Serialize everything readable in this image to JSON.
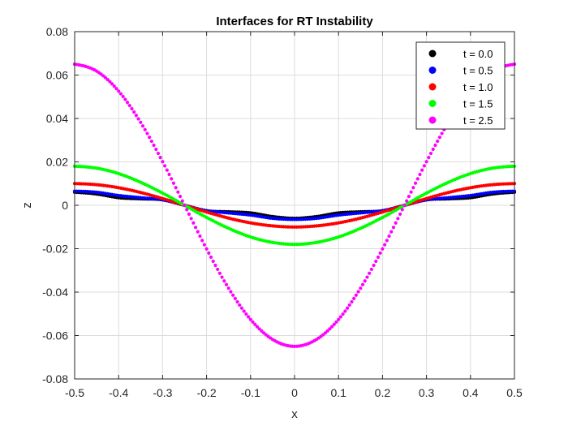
{
  "chart_data": {
    "type": "scatter",
    "title": "Interfaces for RT Instability",
    "xlabel": "x",
    "ylabel": "z",
    "xlim": [
      -0.5,
      0.5
    ],
    "ylim": [
      -0.08,
      0.08
    ],
    "xticks": [
      -0.5,
      -0.4,
      -0.3,
      -0.2,
      -0.1,
      0,
      0.1,
      0.2,
      0.3,
      0.4,
      0.5
    ],
    "xtick_labels": [
      "-0.5",
      "-0.4",
      "-0.3",
      "-0.2",
      "-0.1",
      "0",
      "0.1",
      "0.2",
      "0.3",
      "0.4",
      "0.5"
    ],
    "yticks": [
      -0.08,
      -0.06,
      -0.04,
      -0.02,
      0,
      0.02,
      0.04,
      0.06,
      0.08
    ],
    "ytick_labels": [
      "-0.08",
      "-0.06",
      "-0.04",
      "-0.02",
      "0",
      "0.02",
      "0.04",
      "0.06",
      "0.08"
    ],
    "grid": true,
    "legend_position": "top-right",
    "series": [
      {
        "name": "t = 0.0",
        "color": "#000000",
        "x": [
          -0.5,
          -0.45,
          -0.4,
          -0.35,
          -0.3,
          -0.25,
          -0.2,
          -0.15,
          -0.1,
          -0.05,
          0,
          0.05,
          0.1,
          0.15,
          0.2,
          0.25,
          0.3,
          0.35,
          0.4,
          0.45,
          0.5
        ],
        "y": [
          0.006,
          0.0052,
          0.0035,
          0.003,
          0.0025,
          0,
          -0.0025,
          -0.003,
          -0.0035,
          -0.0052,
          -0.006,
          -0.0052,
          -0.0035,
          -0.003,
          -0.0025,
          0,
          0.0025,
          0.003,
          0.0035,
          0.0052,
          0.006
        ]
      },
      {
        "name": "t = 0.5",
        "color": "#0000ff",
        "x": [
          -0.5,
          -0.45,
          -0.4,
          -0.35,
          -0.3,
          -0.25,
          -0.2,
          -0.15,
          -0.1,
          -0.05,
          0,
          0.05,
          0.1,
          0.15,
          0.2,
          0.25,
          0.3,
          0.35,
          0.4,
          0.45,
          0.5
        ],
        "y": [
          0.0065,
          0.006,
          0.0045,
          0.0035,
          0.0025,
          0,
          -0.0025,
          -0.0035,
          -0.0045,
          -0.006,
          -0.0065,
          -0.006,
          -0.0045,
          -0.0035,
          -0.0025,
          0,
          0.0025,
          0.0035,
          0.0045,
          0.006,
          0.0065
        ]
      },
      {
        "name": "t = 1.0",
        "color": "#ff0000",
        "x": [
          -0.5,
          -0.45,
          -0.4,
          -0.35,
          -0.3,
          -0.25,
          -0.2,
          -0.15,
          -0.1,
          -0.05,
          0,
          0.05,
          0.1,
          0.15,
          0.2,
          0.25,
          0.3,
          0.35,
          0.4,
          0.45,
          0.5
        ],
        "y": [
          0.01,
          0.0095,
          0.0081,
          0.0059,
          0.0031,
          0,
          -0.0031,
          -0.0059,
          -0.0081,
          -0.0095,
          -0.01,
          -0.0095,
          -0.0081,
          -0.0059,
          -0.0031,
          0,
          0.0031,
          0.0059,
          0.0081,
          0.0095,
          0.01
        ]
      },
      {
        "name": "t = 1.5",
        "color": "#00ff00",
        "x": [
          -0.5,
          -0.45,
          -0.4,
          -0.35,
          -0.3,
          -0.25,
          -0.2,
          -0.15,
          -0.1,
          -0.05,
          0,
          0.05,
          0.1,
          0.15,
          0.2,
          0.25,
          0.3,
          0.35,
          0.4,
          0.45,
          0.5
        ],
        "y": [
          0.018,
          0.0171,
          0.0146,
          0.0106,
          0.0056,
          0,
          -0.0056,
          -0.0106,
          -0.0146,
          -0.0171,
          -0.018,
          -0.0171,
          -0.0146,
          -0.0106,
          -0.0056,
          0,
          0.0056,
          0.0106,
          0.0146,
          0.0171,
          0.018
        ]
      },
      {
        "name": "t = 2.5",
        "color": "#ff00ff",
        "x": [
          -0.5,
          -0.45,
          -0.4,
          -0.35,
          -0.3,
          -0.25,
          -0.2,
          -0.15,
          -0.1,
          -0.05,
          0,
          0.05,
          0.1,
          0.15,
          0.2,
          0.25,
          0.3,
          0.35,
          0.4,
          0.45,
          0.5
        ],
        "y": [
          0.065,
          0.0618,
          0.0526,
          0.0382,
          0.0201,
          0,
          -0.0201,
          -0.0382,
          -0.0526,
          -0.0618,
          -0.065,
          -0.0618,
          -0.0526,
          -0.0382,
          -0.0201,
          0,
          0.0201,
          0.0382,
          0.0526,
          0.0618,
          0.065
        ]
      }
    ]
  }
}
